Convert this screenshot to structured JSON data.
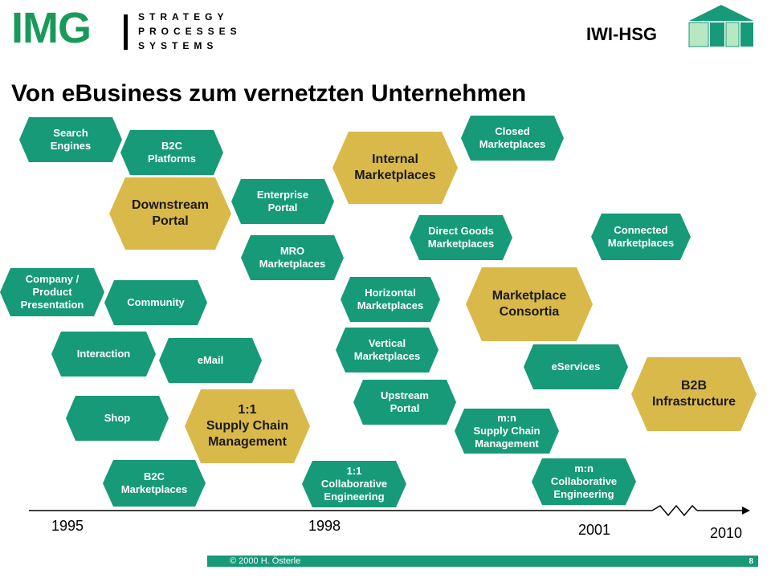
{
  "header": {
    "logo_letters": "IMG",
    "logo_lines": [
      "STRATEGY",
      "PROCESSES",
      "SYSTEMS"
    ],
    "institute": "IWI-HSG"
  },
  "title": "Von eBusiness zum vernetzten Unternehmen",
  "nodes": [
    {
      "text": "Search\nEngines",
      "color": "#169a78"
    },
    {
      "text": "B2C\nPlatforms",
      "color": "#169a78"
    },
    {
      "text": "Downstream\nPortal",
      "color": "#d9b94a"
    },
    {
      "text": "Enterprise\nPortal",
      "color": "#169a78"
    },
    {
      "text": "Internal\nMarketplaces",
      "color": "#d9b94a"
    },
    {
      "text": "Closed\nMarketplaces",
      "color": "#169a78"
    },
    {
      "text": "Direct Goods\nMarketplaces",
      "color": "#169a78"
    },
    {
      "text": "Connected\nMarketplaces",
      "color": "#169a78"
    },
    {
      "text": "MRO\nMarketplaces",
      "color": "#169a78"
    },
    {
      "text": "Company /\nProduct\nPresentation",
      "color": "#169a78"
    },
    {
      "text": "Community",
      "color": "#169a78"
    },
    {
      "text": "Horizontal\nMarketplaces",
      "color": "#169a78"
    },
    {
      "text": "Marketplace\nConsortia",
      "color": "#d9b94a"
    },
    {
      "text": "Vertical\nMarketplaces",
      "color": "#169a78"
    },
    {
      "text": "Interaction",
      "color": "#169a78"
    },
    {
      "text": "eMail",
      "color": "#169a78"
    },
    {
      "text": "eServices",
      "color": "#169a78"
    },
    {
      "text": "B2B\nInfrastructure",
      "color": "#d9b94a"
    },
    {
      "text": "Upstream\nPortal",
      "color": "#169a78"
    },
    {
      "text": "Shop",
      "color": "#169a78"
    },
    {
      "text": "1:1\nSupply Chain\nManagement",
      "color": "#d9b94a"
    },
    {
      "text": "m:n\nSupply Chain\nManagement",
      "color": "#169a78"
    },
    {
      "text": "B2C\nMarketplaces",
      "color": "#169a78"
    },
    {
      "text": "1:1\nCollaborative\nEngineering",
      "color": "#169a78"
    },
    {
      "text": "m:n\nCollaborative\nEngineering",
      "color": "#169a78"
    }
  ],
  "timeline": {
    "years": [
      "1995",
      "1998",
      "2001",
      "2010"
    ]
  },
  "footer": {
    "copyright": "© 2000 H. Österle",
    "page": "8"
  },
  "colors": {
    "accent_green": "#169a78",
    "gold": "#d9b94a",
    "logo_green": "#1a9a5a"
  }
}
